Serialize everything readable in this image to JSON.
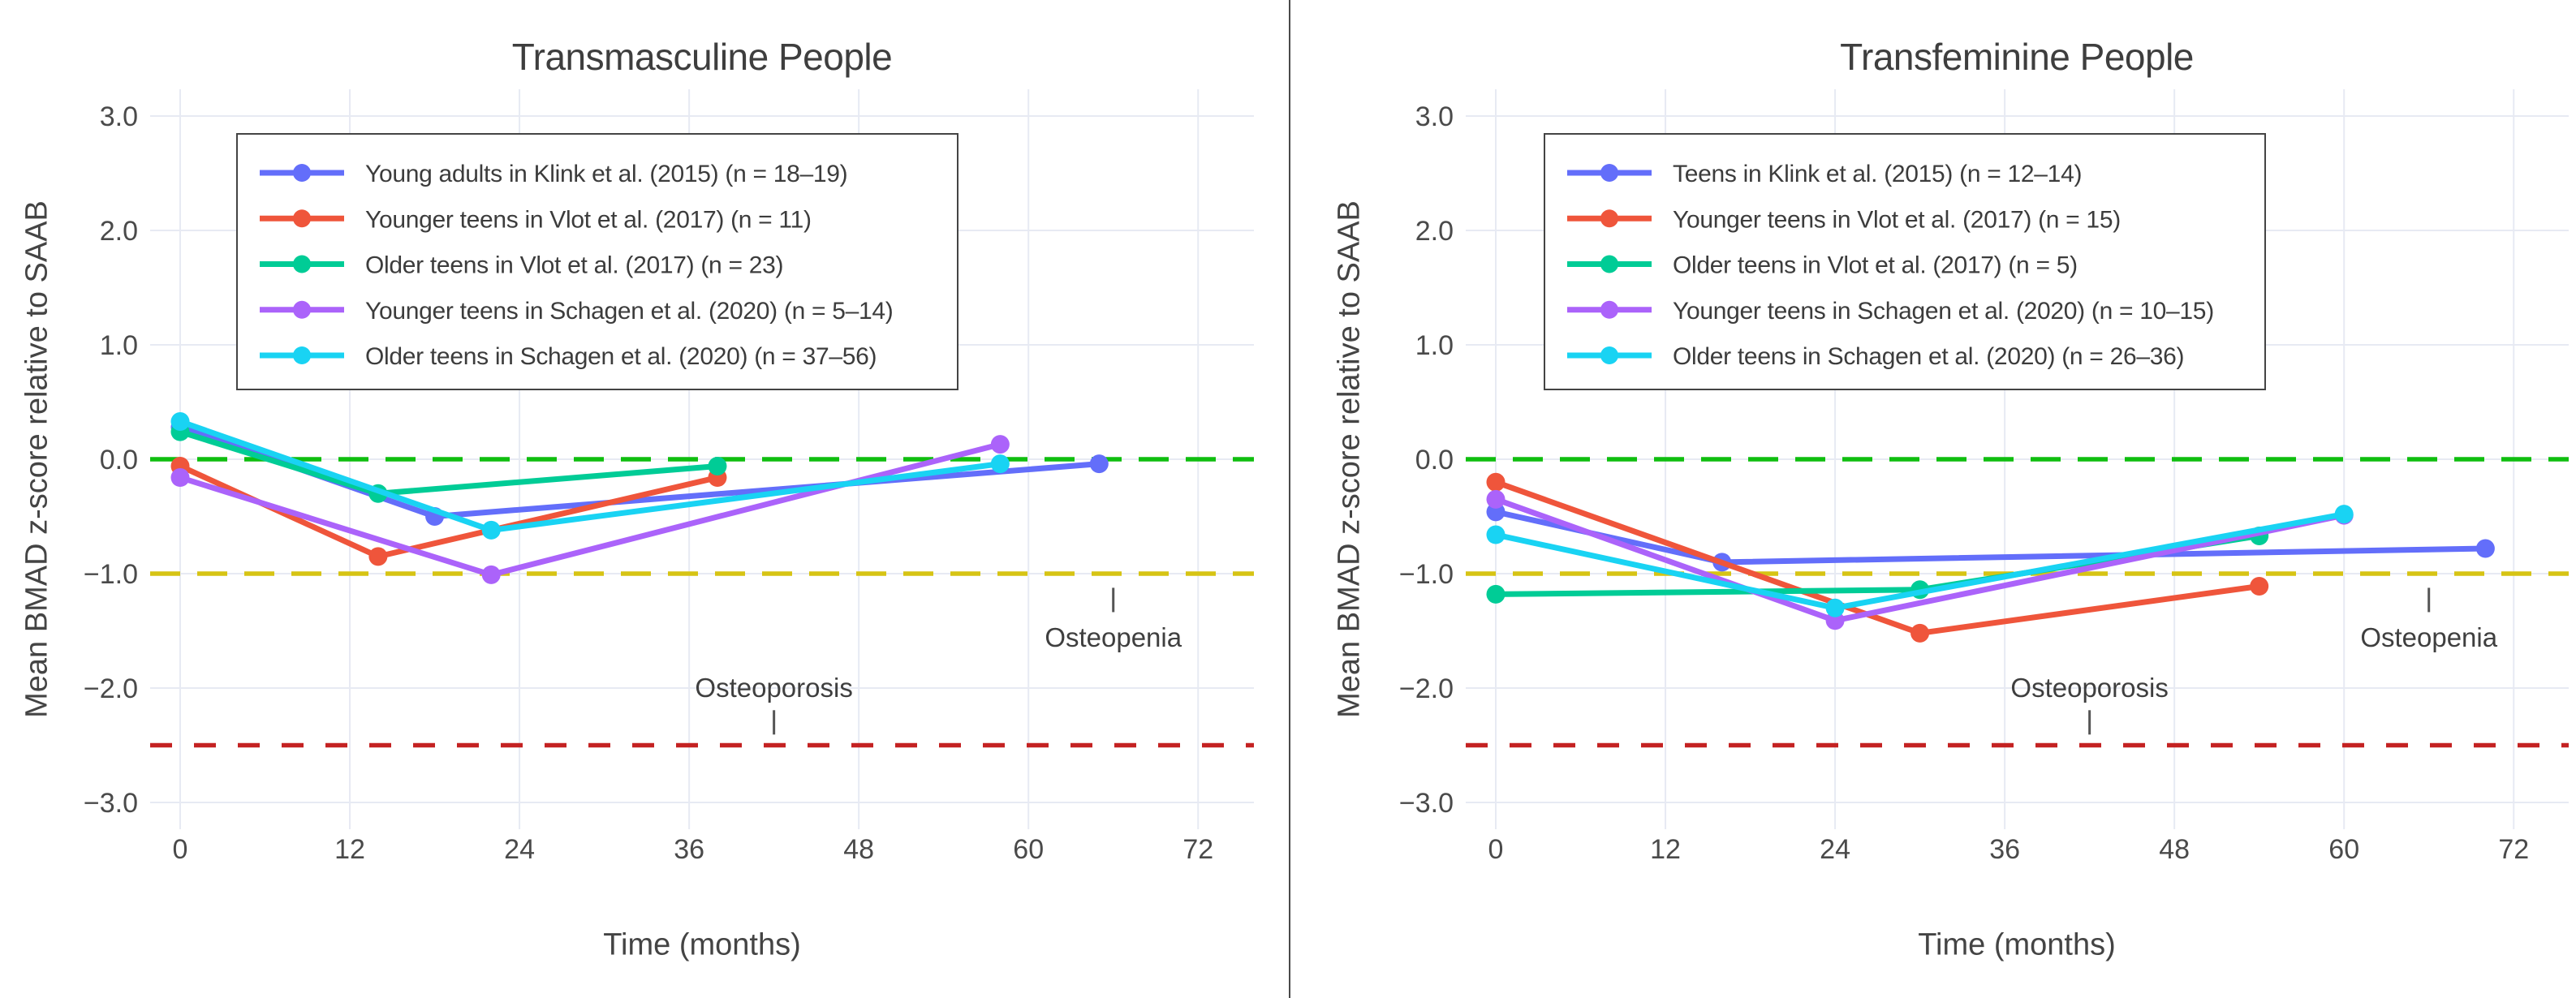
{
  "chart_data": [
    {
      "type": "line",
      "title": "Transmasculine People",
      "xlabel": "Time (months)",
      "ylabel": "Mean BMAD z-score relative to SAAB",
      "x_ticks": [
        0,
        12,
        24,
        36,
        48,
        60,
        72
      ],
      "y_tick_labels": [
        "3.0",
        "2.0",
        "1.0",
        "0.0",
        "−1.0",
        "−2.0",
        "−3.0"
      ],
      "y_tick_values": [
        3,
        2,
        1,
        0,
        -1,
        -2,
        -3
      ],
      "x_range": [
        -2.1,
        75.9
      ],
      "y_range": [
        -3.23,
        3.23
      ],
      "grid": true,
      "legend_position": "top-left-inside",
      "series": [
        {
          "id": "klink-2015",
          "name": "Young adults in Klink et al. (2015) (n = 18–19)",
          "color": "#636EFA",
          "x": [
            0,
            18,
            65
          ],
          "y": [
            0.28,
            -0.5,
            -0.04
          ]
        },
        {
          "id": "vlot-2017-younger",
          "name": "Younger teens in Vlot et al. (2017) (n = 11)",
          "color": "#EF553B",
          "x": [
            0,
            14,
            38
          ],
          "y": [
            -0.06,
            -0.85,
            -0.16
          ]
        },
        {
          "id": "vlot-2017-older",
          "name": "Older teens in Vlot et al. (2017) (n = 23)",
          "color": "#00CC96",
          "x": [
            0,
            14,
            38
          ],
          "y": [
            0.24,
            -0.3,
            -0.06
          ]
        },
        {
          "id": "schagen-2020-younger",
          "name": "Younger teens in Schagen et al. (2020) (n = 5–14)",
          "color": "#AB63FA",
          "x": [
            0,
            22,
            58
          ],
          "y": [
            -0.16,
            -1.01,
            0.13
          ]
        },
        {
          "id": "schagen-2020-older",
          "name": "Older teens in Schagen et al. (2020) (n = 37–56)",
          "color": "#19D3F3",
          "x": [
            0,
            22,
            58
          ],
          "y": [
            0.33,
            -0.62,
            -0.04
          ]
        }
      ],
      "reference_lines": [
        {
          "id": "zero",
          "z": 0,
          "color": "#0FBE0F",
          "dash": [
            37,
            21
          ]
        },
        {
          "id": "osteopenia-threshold",
          "z": -1,
          "color": "#D6C414",
          "dash": [
            37,
            21
          ]
        },
        {
          "id": "osteoporosis-threshold",
          "z": -2.5,
          "color": "#C42222",
          "dash": [
            27,
            27
          ]
        }
      ],
      "annotations": [
        {
          "id": "osteoporosis",
          "text": "Osteoporosis",
          "t": 42,
          "z_text": -2.0,
          "z_tick": -2.3,
          "tick_side": "below"
        },
        {
          "id": "osteopenia",
          "text": "Osteopenia",
          "t": 66,
          "z_text": -1.56,
          "z_tick": -1.23,
          "tick_side": "above"
        }
      ]
    },
    {
      "type": "line",
      "title": "Transfeminine People",
      "xlabel": "Time (months)",
      "ylabel": "Mean BMAD z-score relative to SAAB",
      "x_ticks": [
        0,
        12,
        24,
        36,
        48,
        60,
        72
      ],
      "y_tick_labels": [
        "3.0",
        "2.0",
        "1.0",
        "0.0",
        "−1.0",
        "−2.0",
        "−3.0"
      ],
      "y_tick_values": [
        3,
        2,
        1,
        0,
        -1,
        -2,
        -3
      ],
      "x_range": [
        -2.1,
        75.9
      ],
      "y_range": [
        -3.23,
        3.23
      ],
      "grid": true,
      "legend_position": "top-left-inside",
      "series": [
        {
          "id": "klink-2015",
          "name": "Teens in Klink et al. (2015) (n = 12–14)",
          "color": "#636EFA",
          "x": [
            0,
            16,
            70
          ],
          "y": [
            -0.46,
            -0.9,
            -0.78
          ]
        },
        {
          "id": "vlot-2017-younger",
          "name": "Younger teens in Vlot et al. (2017) (n = 15)",
          "color": "#EF553B",
          "x": [
            0,
            30,
            54
          ],
          "y": [
            -0.2,
            -1.52,
            -1.11
          ]
        },
        {
          "id": "vlot-2017-older",
          "name": "Older teens in Vlot et al. (2017) (n = 5)",
          "color": "#00CC96",
          "x": [
            0,
            30,
            54
          ],
          "y": [
            -1.18,
            -1.14,
            -0.67
          ]
        },
        {
          "id": "schagen-2020-younger",
          "name": "Younger teens in Schagen et al. (2020) (n = 10–15)",
          "color": "#AB63FA",
          "x": [
            0,
            24,
            60
          ],
          "y": [
            -0.35,
            -1.41,
            -0.49
          ]
        },
        {
          "id": "schagen-2020-older",
          "name": "Older teens in Schagen et al. (2020) (n = 26–36)",
          "color": "#19D3F3",
          "x": [
            0,
            24,
            60
          ],
          "y": [
            -0.66,
            -1.3,
            -0.48
          ]
        }
      ],
      "reference_lines": [
        {
          "id": "zero",
          "z": 0,
          "color": "#0FBE0F",
          "dash": [
            37,
            21
          ]
        },
        {
          "id": "osteopenia-threshold",
          "z": -1,
          "color": "#D6C414",
          "dash": [
            37,
            21
          ]
        },
        {
          "id": "osteoporosis-threshold",
          "z": -2.5,
          "color": "#C42222",
          "dash": [
            27,
            27
          ]
        }
      ],
      "annotations": [
        {
          "id": "osteoporosis",
          "text": "Osteoporosis",
          "t": 42,
          "z_text": -2.0,
          "z_tick": -2.3,
          "tick_side": "below"
        },
        {
          "id": "osteopenia",
          "text": "Osteopenia",
          "t": 66,
          "z_text": -1.56,
          "z_tick": -1.23,
          "tick_side": "above"
        }
      ]
    }
  ],
  "style_colors": {
    "gridline": "#E7EAF3",
    "tick_text": "#4a4a4a",
    "annotation_text": "#3f3f3f",
    "legend_border": "#444444",
    "divider": "#4a4a4a"
  }
}
